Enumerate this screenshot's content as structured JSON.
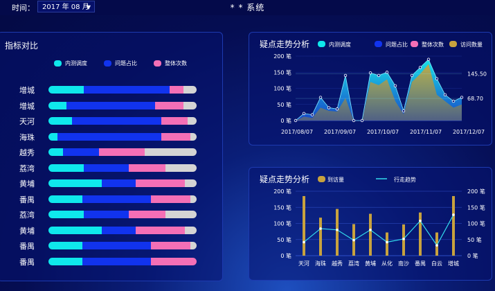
{
  "header": {
    "time_label": "时间：",
    "time_value": "2017 年 08 月",
    "system_title": "* * 系统"
  },
  "colors": {
    "cyan": "#0fe8ec",
    "blue": "#1133ee",
    "pink": "#f46fb6",
    "gray": "#d4d4d4",
    "gold": "#c8a23e",
    "line": "#33ddee"
  },
  "left_panel": {
    "title": "指标对比",
    "legend": [
      "内测调度",
      "问题占比",
      "整体次数"
    ],
    "rows": [
      {
        "name": "增城",
        "values": [
          0.24,
          0.58,
          0.09,
          0.09
        ]
      },
      {
        "name": "增城",
        "values": [
          0.12,
          0.6,
          0.19,
          0.09
        ]
      },
      {
        "name": "天河",
        "values": [
          0.16,
          0.6,
          0.18,
          0.06
        ]
      },
      {
        "name": "海珠",
        "values": [
          0.06,
          0.7,
          0.2,
          0.04
        ]
      },
      {
        "name": "越秀",
        "values": [
          0.1,
          0.24,
          0.31,
          0.35
        ]
      },
      {
        "name": "荔湾",
        "values": [
          0.24,
          0.3,
          0.25,
          0.21
        ]
      },
      {
        "name": "黄埔",
        "values": [
          0.36,
          0.23,
          0.33,
          0.08
        ]
      },
      {
        "name": "番禺",
        "values": [
          0.23,
          0.46,
          0.27,
          0.04
        ]
      },
      {
        "name": "荔湾",
        "values": [
          0.24,
          0.3,
          0.25,
          0.21
        ]
      },
      {
        "name": "黄埔",
        "values": [
          0.36,
          0.23,
          0.33,
          0.08
        ]
      },
      {
        "name": "番禺",
        "values": [
          0.23,
          0.46,
          0.27,
          0.04
        ]
      },
      {
        "name": "番禺",
        "values": [
          0.23,
          0.46,
          0.31,
          0.0
        ]
      }
    ]
  },
  "chart_data": [
    {
      "type": "area",
      "title": "疑点走势分析",
      "legend": [
        "内测调度",
        "问题占比",
        "整体次数",
        "访问数量"
      ],
      "yticks": [
        "0 笔",
        "50 笔",
        "100 笔",
        "150 笔",
        "200 笔"
      ],
      "ylim": [
        0,
        200
      ],
      "xticks": [
        "2017/08/07",
        "2017/09/07",
        "2017/10/07",
        "2017/11/07",
        "2017/12/07"
      ],
      "annotations": [
        "145.50",
        "68.70"
      ],
      "series": [
        {
          "name": "内测调度",
          "values": [
            0,
            22,
            18,
            72,
            40,
            36,
            140,
            0,
            0,
            148,
            140,
            150,
            108,
            30,
            140,
            165,
            190,
            130,
            80,
            60,
            72
          ]
        },
        {
          "name": "访问数量",
          "values": [
            0,
            12,
            8,
            40,
            30,
            28,
            70,
            0,
            0,
            120,
            110,
            128,
            60,
            20,
            120,
            145,
            175,
            80,
            60,
            40,
            50
          ]
        }
      ]
    },
    {
      "type": "bar",
      "title": "疑点走势分析",
      "legend": [
        "到访量",
        "行走趋势"
      ],
      "yticks": [
        "0 笔",
        "50 笔",
        "100 笔",
        "150 笔",
        "200 笔"
      ],
      "yticks_right": [
        "0 笔",
        "50 笔",
        "100 笔",
        "150 笔",
        "200 笔"
      ],
      "ylim": [
        0,
        200
      ],
      "categories": [
        "天河",
        "海珠",
        "越秀",
        "荔湾",
        "黄埔",
        "从化",
        "南沙",
        "番禺",
        "白云",
        "增城"
      ],
      "series": [
        {
          "name": "到访量",
          "values": [
            185,
            118,
            145,
            98,
            130,
            72,
            97,
            134,
            72,
            185
          ]
        },
        {
          "name": "行走趋势",
          "values": [
            42,
            84,
            80,
            48,
            80,
            42,
            52,
            108,
            32,
            127
          ]
        }
      ]
    }
  ]
}
